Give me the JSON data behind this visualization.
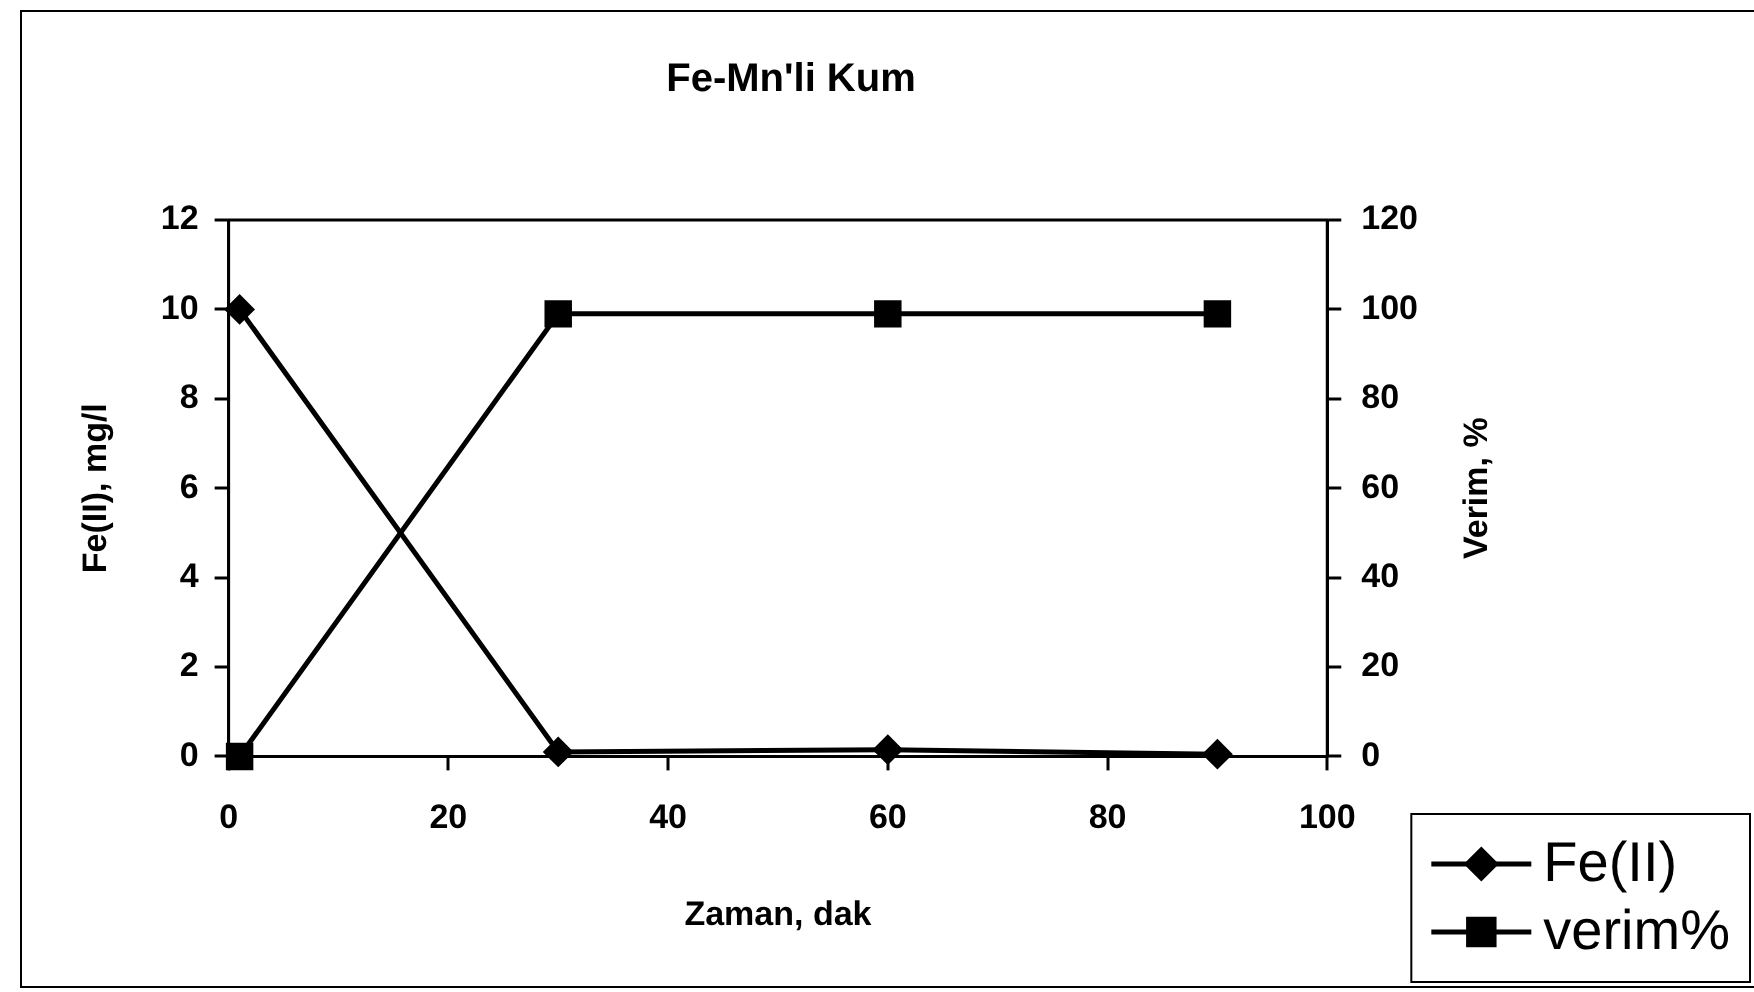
{
  "chart_data": {
    "type": "line",
    "title": "Fe-Mn'li Kum",
    "xlabel": "Zaman, dak",
    "ylabel": "Fe(II), mg/l",
    "y2label": "Verim, %",
    "x": [
      1,
      30,
      60,
      90
    ],
    "series": [
      {
        "name": "Fe(II)",
        "color": "#000000",
        "values": [
          10,
          0.1,
          0.15,
          0.05
        ],
        "marker": "diamond"
      },
      {
        "name": "verim%",
        "color": "#000000",
        "values": [
          0,
          99,
          99,
          99
        ],
        "axis": "y2",
        "marker": "square"
      }
    ],
    "xlim": [
      0,
      100
    ],
    "xticks": [
      0,
      20,
      40,
      60,
      80,
      100
    ],
    "ylim": [
      0,
      12
    ],
    "yticks": [
      0,
      2,
      4,
      6,
      8,
      10,
      12
    ],
    "y2lim": [
      0,
      120
    ],
    "y2ticks": [
      0,
      20,
      40,
      60,
      80,
      100,
      120
    ],
    "grid": false,
    "legend": "bottom right",
    "line_style": "solid"
  }
}
